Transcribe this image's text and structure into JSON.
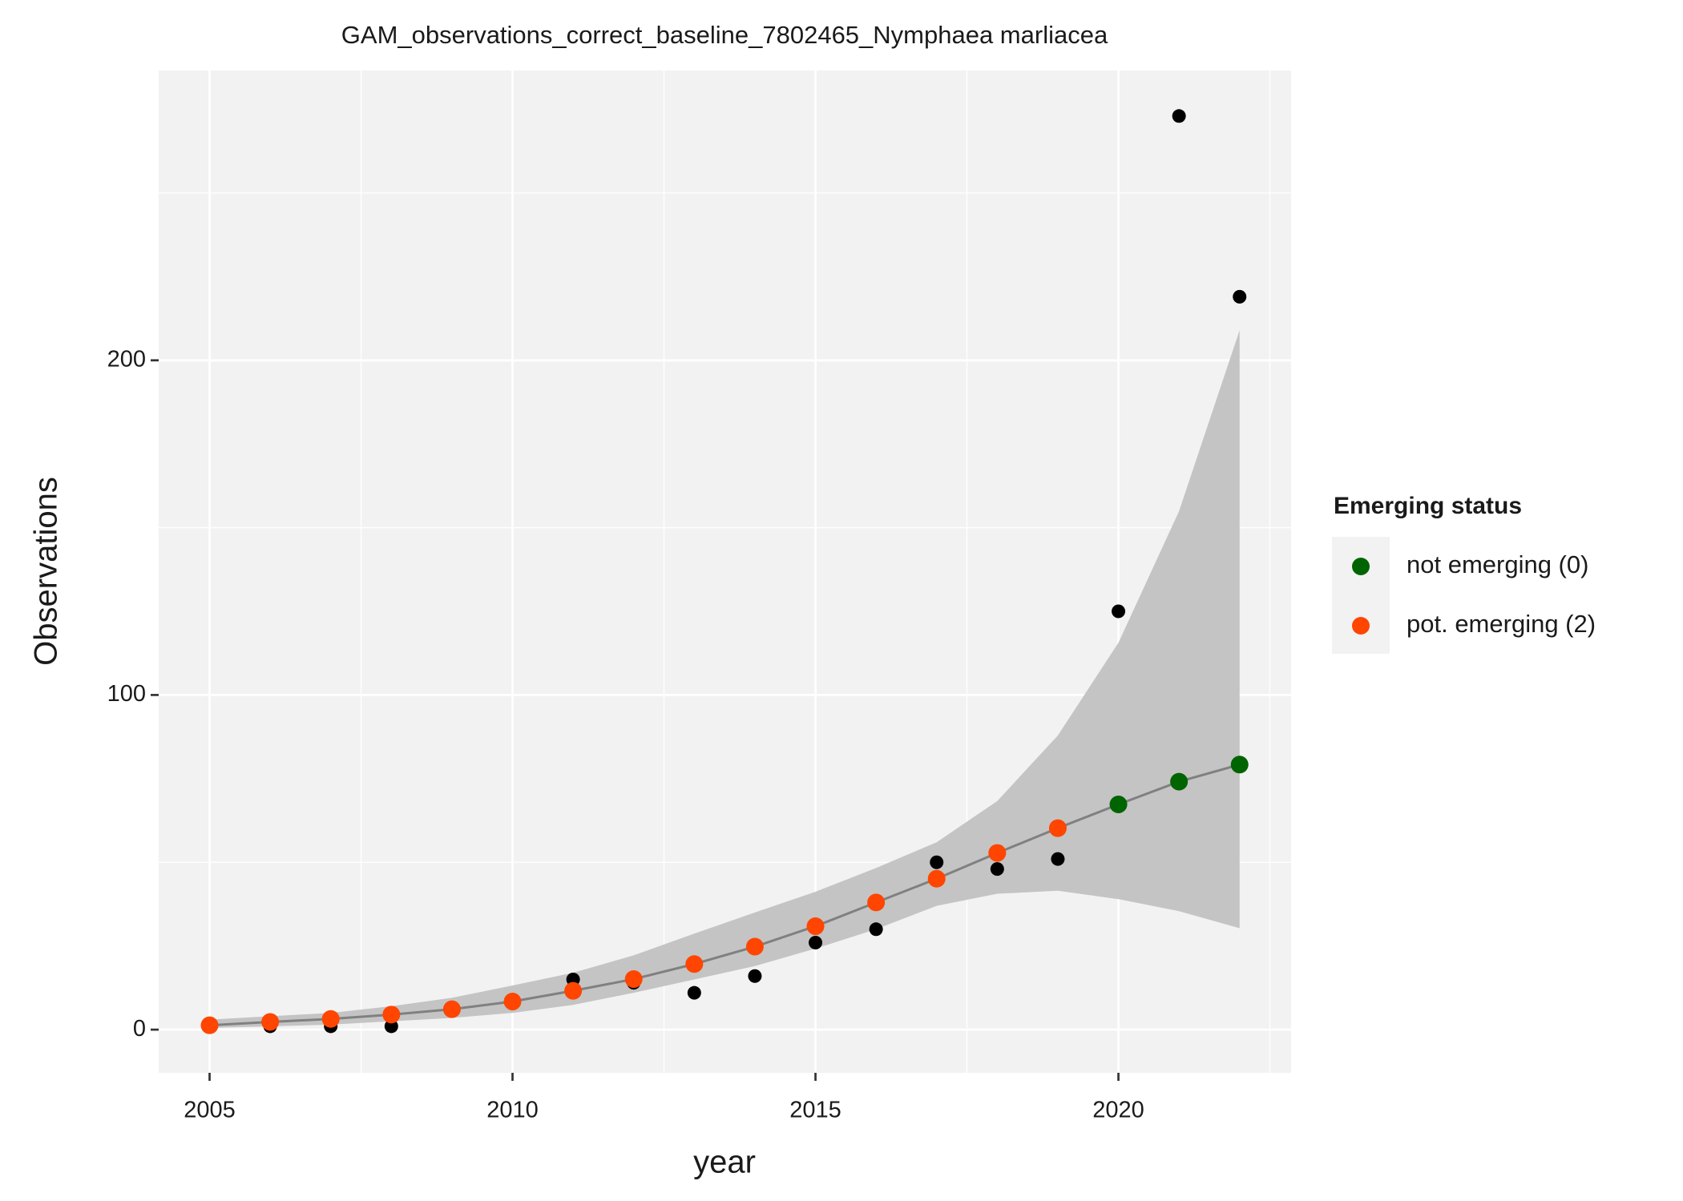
{
  "chart_data": {
    "type": "gam",
    "title": "GAM_observations_correct_baseline_7802465_Nymphaea marliacea",
    "xlabel": "year",
    "ylabel": "Observations",
    "x": [
      2005,
      2006,
      2007,
      2008,
      2009,
      2010,
      2011,
      2012,
      2013,
      2014,
      2015,
      2016,
      2017,
      2018,
      2019,
      2020,
      2021,
      2022
    ],
    "observations": [
      1,
      1,
      1,
      1,
      6,
      8,
      15,
      14,
      11,
      16,
      26,
      30,
      50,
      48,
      51,
      125,
      273,
      219
    ],
    "fitted": [
      1.3,
      2.3,
      3.2,
      4.5,
      6.1,
      8.4,
      11.6,
      15.1,
      19.6,
      24.8,
      30.9,
      38,
      45.1,
      52.8,
      60.2,
      67.3,
      74.1,
      79.2
    ],
    "lower": [
      0.5,
      1,
      1.5,
      2.5,
      3.5,
      5,
      7.4,
      11,
      15,
      19,
      24.2,
      30,
      37,
      40.6,
      41.5,
      39,
      35.4,
      30.3
    ],
    "upper": [
      3,
      4,
      5,
      7,
      9.5,
      13.2,
      17,
      22.2,
      28.7,
      35,
      41.2,
      48.3,
      56,
      68.3,
      87.9,
      115.6,
      154.9,
      209
    ],
    "status": [
      2,
      2,
      2,
      2,
      2,
      2,
      2,
      2,
      2,
      2,
      2,
      2,
      2,
      2,
      2,
      0,
      0,
      0
    ],
    "observation_color": "#000000",
    "fit_color": "#808080",
    "ribbon_color": "#c4c4c4",
    "xlim": [
      2004.16,
      2022.85
    ],
    "ylim": [
      -12.9,
      286.6
    ],
    "xticks": [
      2005,
      2010,
      2015,
      2020
    ],
    "yticks": [
      0,
      100,
      200
    ],
    "xminor": [
      2007.5,
      2012.5,
      2017.5,
      2022.5
    ],
    "yminor": [
      50,
      150,
      250
    ],
    "grid": true,
    "legend": {
      "title": "Emerging status",
      "position": "right",
      "entries": [
        {
          "code": 0,
          "label": "not emerging (0)",
          "color": "#006400"
        },
        {
          "code": 2,
          "label": "pot. emerging (2)",
          "color": "#ff4500"
        }
      ]
    }
  }
}
